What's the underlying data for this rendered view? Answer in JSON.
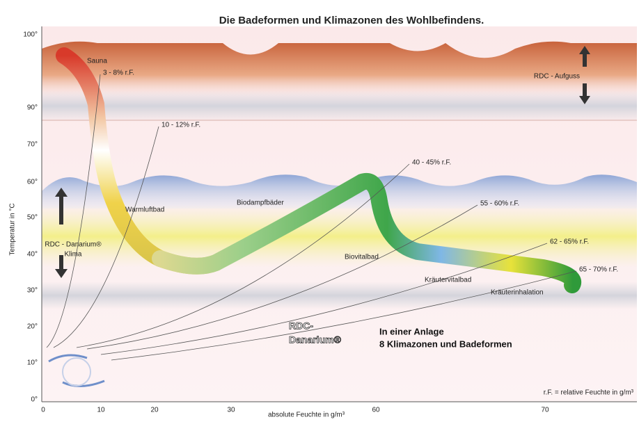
{
  "title": "Die Badeformen und Klimazonen des Wohlbefindens.",
  "y_axis": {
    "label": "Temperatur in °C",
    "ticks": [
      "100°",
      "90°",
      "70°",
      "60°",
      "50°",
      "40°",
      "30°",
      "20°",
      "10°",
      "0°"
    ]
  },
  "x_axis": {
    "label": "absolute Feuchte in g/m³",
    "ticks": [
      "0",
      "10",
      "20",
      "30",
      "60",
      "70"
    ]
  },
  "zones": [
    "Sauna",
    "Warmluftbad",
    "Biodampfbäder",
    "Biovitalbad",
    "Kräutervitalbad",
    "Kräuterinhalation"
  ],
  "humidity_labels": [
    "3 - 8% r.F.",
    "10 - 12% r.F.",
    "40 - 45% r.F.",
    "55 - 60% r.F.",
    "62 - 65% r.F.",
    "65 - 70% r.F."
  ],
  "notes": {
    "aufguss": "RDC - Aufguss",
    "klima": [
      "RDC - Danarium®",
      "Klima"
    ],
    "brand": [
      "RDC-",
      "Danarium®"
    ],
    "tagline": [
      "In einer Anlage",
      "8 Klimazonen und Badeformen"
    ],
    "legend": "r.F. = relative Feuchte in g/m³"
  }
}
